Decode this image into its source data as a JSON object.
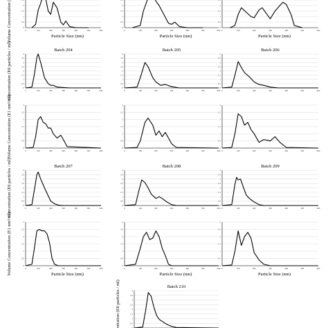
{
  "chart_data": [
    {
      "type": "line",
      "panel_id": "b203-left-vol",
      "title": "",
      "ylabel": "Volume Concentration (E1 nm³/ml)",
      "xlabel": "Particle Size (nm)",
      "ylim": [
        0,
        3
      ],
      "yticks": [
        "0",
        "0.5",
        "1",
        "1.5",
        "2",
        "2.5",
        "3"
      ],
      "x": [
        50,
        80,
        100,
        120,
        140,
        160,
        180,
        200,
        220,
        250,
        280,
        300,
        320,
        350,
        400,
        500
      ],
      "series": [
        {
          "values": [
            0,
            0.3,
            1.6,
            2.2,
            3.0,
            2.6,
            1.5,
            1.2,
            2.3,
            1.8,
            0.5,
            0.25,
            0.6,
            0.1,
            0,
            0
          ]
        }
      ]
    },
    {
      "type": "line",
      "panel_id": "b203-mid-vol",
      "title": "",
      "ylabel": "",
      "xlabel": "Particle Size (nm)",
      "ylim": [
        0,
        3
      ],
      "yticks": [
        "0",
        "0.5",
        "1",
        "1.5",
        "2",
        "2.5",
        "3"
      ],
      "x": [
        50,
        100,
        120,
        150,
        180,
        200,
        220,
        250,
        280,
        300,
        320,
        350,
        400,
        500
      ],
      "series": [
        {
          "values": [
            0,
            0.2,
            1.5,
            2.7,
            3.0,
            2.4,
            2.0,
            1.2,
            0.4,
            0.3,
            0.5,
            0.1,
            0,
            0
          ]
        }
      ]
    },
    {
      "type": "line",
      "panel_id": "b203-right-vol",
      "title": "",
      "ylabel": "",
      "xlabel": "Particle Size (nm)",
      "ylim": [
        0,
        3
      ],
      "yticks": [
        "0",
        "0.5",
        "1",
        "1.5",
        "2",
        "2.5",
        "3"
      ],
      "x": [
        50,
        80,
        100,
        120,
        150,
        180,
        200,
        230,
        250,
        280,
        300,
        330,
        360,
        380,
        400,
        430,
        450,
        500
      ],
      "series": [
        {
          "values": [
            0,
            0.2,
            1.2,
            1.8,
            1.4,
            1.0,
            0.9,
            1.6,
            1.8,
            1.2,
            0.8,
            1.5,
            2.0,
            2.3,
            2.1,
            1.2,
            0.2,
            0
          ]
        }
      ]
    },
    {
      "type": "line",
      "panel_id": "b204-conc",
      "title": "Batch 204",
      "ylabel": "Concentration (E6 particles / ml)",
      "xlabel": "",
      "ylim": [
        0,
        4
      ],
      "yticks": [
        "0",
        "0.5",
        "1",
        "1.5",
        "2",
        "2.5",
        "3",
        "3.5",
        "4"
      ],
      "x": [
        0,
        50,
        70,
        90,
        100,
        120,
        150,
        180,
        200,
        220,
        250,
        300,
        350,
        400,
        600
      ],
      "series": [
        {
          "values": [
            0,
            0.1,
            1.6,
            3.6,
            4.0,
            3.0,
            1.2,
            0.5,
            0.3,
            0.3,
            0.1,
            0.05,
            0,
            0,
            0
          ]
        }
      ]
    },
    {
      "type": "line",
      "panel_id": "b205-conc",
      "title": "Batch 205",
      "ylabel": "",
      "xlabel": "",
      "ylim": [
        0,
        4
      ],
      "yticks": [
        "0",
        "0.5",
        "1",
        "1.5",
        "2",
        "2.5",
        "3",
        "3.5",
        "4"
      ],
      "x": [
        0,
        80,
        100,
        130,
        150,
        180,
        200,
        230,
        260,
        300,
        350,
        600
      ],
      "series": [
        {
          "values": [
            0,
            0.1,
            1.2,
            3.0,
            2.5,
            1.2,
            0.7,
            0.3,
            0.4,
            0.15,
            0,
            0
          ]
        }
      ]
    },
    {
      "type": "line",
      "panel_id": "b206-conc",
      "title": "Batch 206",
      "ylabel": "",
      "xlabel": "",
      "ylim": [
        0,
        4
      ],
      "yticks": [
        "0",
        "0.5",
        "1",
        "1.5",
        "2",
        "2.5",
        "3",
        "3.5",
        "4"
      ],
      "x": [
        0,
        60,
        80,
        100,
        120,
        140,
        170,
        200,
        230,
        260,
        300,
        350,
        600
      ],
      "series": [
        {
          "values": [
            0,
            0.1,
            1.5,
            3.1,
            2.4,
            1.8,
            1.3,
            0.7,
            0.4,
            0.3,
            0.1,
            0,
            0
          ]
        }
      ]
    },
    {
      "type": "line",
      "panel_id": "b204-vol",
      "title": "",
      "ylabel": "Volume Concentration (E1 nm³/ml)",
      "xlabel": "",
      "ylim": [
        0,
        3
      ],
      "yticks": [
        "0",
        "0.5",
        "1",
        "1.5",
        "2",
        "2.5",
        "3"
      ],
      "x": [
        0,
        60,
        80,
        100,
        120,
        140,
        160,
        180,
        200,
        220,
        250,
        280,
        300,
        330,
        600
      ],
      "series": [
        {
          "values": [
            0,
            0.05,
            0.8,
            2.0,
            2.2,
            1.8,
            1.7,
            1.4,
            1.4,
            1.0,
            0.7,
            0.9,
            0.6,
            0.1,
            0
          ]
        }
      ]
    },
    {
      "type": "line",
      "panel_id": "b205-vol",
      "title": "",
      "ylabel": "",
      "xlabel": "",
      "ylim": [
        0,
        3
      ],
      "yticks": [
        "0",
        "0.5",
        "1",
        "1.5",
        "2",
        "2.5",
        "3"
      ],
      "x": [
        0,
        80,
        100,
        130,
        150,
        180,
        200,
        220,
        240,
        260,
        280,
        300,
        330,
        600
      ],
      "series": [
        {
          "values": [
            0,
            0.05,
            0.5,
            1.8,
            2.1,
            1.6,
            0.9,
            1.2,
            0.8,
            1.1,
            0.7,
            0.3,
            0.05,
            0
          ]
        }
      ]
    },
    {
      "type": "line",
      "panel_id": "b206-vol",
      "title": "",
      "ylabel": "",
      "xlabel": "",
      "ylim": [
        0,
        3
      ],
      "yticks": [
        "0",
        "0.5",
        "1",
        "1.5",
        "2",
        "2.5",
        "3"
      ],
      "x": [
        0,
        60,
        80,
        100,
        120,
        140,
        160,
        180,
        200,
        230,
        260,
        300,
        330,
        360,
        400,
        600
      ],
      "series": [
        {
          "values": [
            0,
            0.05,
            1.0,
            2.4,
            2.2,
            1.6,
            1.8,
            1.3,
            1.0,
            0.4,
            0.6,
            0.5,
            0.8,
            0.4,
            0.05,
            0
          ]
        }
      ]
    },
    {
      "type": "line",
      "panel_id": "b207-conc",
      "title": "Batch 207",
      "ylabel": "Concentration (E6 particles / ml)",
      "xlabel": "",
      "ylim": [
        0,
        4
      ],
      "yticks": [
        "0",
        "0.5",
        "1",
        "1.5",
        "2",
        "2.5",
        "3",
        "3.5",
        "4"
      ],
      "x": [
        0,
        50,
        70,
        90,
        100,
        120,
        150,
        180,
        200,
        230,
        260,
        300,
        600
      ],
      "series": [
        {
          "values": [
            0,
            0.1,
            1.8,
            3.5,
            3.8,
            3.0,
            2.0,
            1.1,
            0.5,
            0.2,
            0.05,
            0,
            0
          ]
        }
      ]
    },
    {
      "type": "line",
      "panel_id": "b208-conc",
      "title": "Batch 208",
      "ylabel": "",
      "xlabel": "",
      "ylim": [
        0,
        4
      ],
      "yticks": [
        "0",
        "0.5",
        "1",
        "1.5",
        "2",
        "2.5",
        "3",
        "3.5",
        "4"
      ],
      "x": [
        0,
        70,
        90,
        110,
        130,
        150,
        170,
        200,
        220,
        240,
        270,
        300,
        330,
        600
      ],
      "series": [
        {
          "values": [
            0,
            0.1,
            1.6,
            2.9,
            2.6,
            2.0,
            1.3,
            0.8,
            1.0,
            0.8,
            0.4,
            0.1,
            0,
            0
          ]
        }
      ]
    },
    {
      "type": "line",
      "panel_id": "b209-conc",
      "title": "Batch 209",
      "ylabel": "",
      "xlabel": "",
      "ylim": [
        0,
        4
      ],
      "yticks": [
        "0",
        "0.5",
        "1",
        "1.5",
        "2",
        "2.5",
        "3",
        "3.5",
        "4"
      ],
      "x": [
        0,
        60,
        80,
        90,
        100,
        115,
        130,
        150,
        170,
        200,
        230,
        260,
        600
      ],
      "series": [
        {
          "values": [
            0,
            0.1,
            2.4,
            3.2,
            2.9,
            3.0,
            2.2,
            1.2,
            0.8,
            0.4,
            0.1,
            0,
            0
          ]
        }
      ]
    },
    {
      "type": "line",
      "panel_id": "b207-vol",
      "title": "",
      "ylabel": "Volume Concentration (E1 nm³/ml)",
      "xlabel": "Particle Size (nm)",
      "ylim": [
        0,
        3
      ],
      "yticks": [
        "0",
        "0.5",
        "1",
        "1.5",
        "2",
        "2.5",
        "3"
      ],
      "x": [
        0,
        50,
        70,
        90,
        110,
        130,
        150,
        170,
        190,
        210,
        230,
        260,
        600
      ],
      "series": [
        {
          "values": [
            0,
            0.1,
            1.2,
            2.4,
            2.5,
            2.4,
            2.4,
            2.2,
            1.6,
            0.5,
            0.1,
            0,
            0
          ]
        }
      ]
    },
    {
      "type": "line",
      "panel_id": "b208-vol",
      "title": "",
      "ylabel": "",
      "xlabel": "Particle Size (nm)",
      "ylim": [
        0,
        3
      ],
      "yticks": [
        "0",
        "0.5",
        "1",
        "1.5",
        "2",
        "2.5",
        "3"
      ],
      "x": [
        0,
        70,
        100,
        120,
        140,
        160,
        180,
        200,
        220,
        240,
        260,
        280,
        300,
        600
      ],
      "series": [
        {
          "values": [
            0,
            0.1,
            1.2,
            2.0,
            2.3,
            1.8,
            1.9,
            2.4,
            2.0,
            1.2,
            0.7,
            0.1,
            0,
            0
          ]
        }
      ]
    },
    {
      "type": "line",
      "panel_id": "b209-vol",
      "title": "",
      "ylabel": "",
      "xlabel": "Particle Size (nm)",
      "ylim": [
        0,
        3
      ],
      "yticks": [
        "0",
        "0.5",
        "1",
        "1.5",
        "2",
        "2.5",
        "3"
      ],
      "x": [
        0,
        60,
        80,
        100,
        120,
        140,
        160,
        180,
        200,
        230,
        260,
        300,
        600
      ],
      "series": [
        {
          "values": [
            0,
            0.05,
            1.0,
            2.4,
            1.4,
            2.0,
            2.3,
            1.9,
            0.9,
            0.4,
            0.1,
            0,
            0
          ]
        }
      ]
    },
    {
      "type": "line",
      "panel_id": "b210-conc",
      "title": "Batch 210",
      "ylabel": "Concentration (E6 particles / ml)",
      "xlabel": "",
      "ylim": [
        0,
        4
      ],
      "yticks": [
        "0",
        "0.5",
        "1",
        "1.5",
        "2",
        "2.5",
        "3",
        "3.5",
        "4"
      ],
      "x": [
        0,
        60,
        80,
        100,
        120,
        140,
        160,
        180,
        200,
        230,
        260,
        300,
        600
      ],
      "series": [
        {
          "values": [
            0,
            0.1,
            1.8,
            3.8,
            3.4,
            2.2,
            1.3,
            0.9,
            0.7,
            0.4,
            0.2,
            0.05,
            0
          ]
        }
      ]
    }
  ],
  "xticks": [
    "0",
    "100",
    "200",
    "300",
    "400",
    "500",
    "600"
  ],
  "xlim": [
    0,
    600
  ]
}
